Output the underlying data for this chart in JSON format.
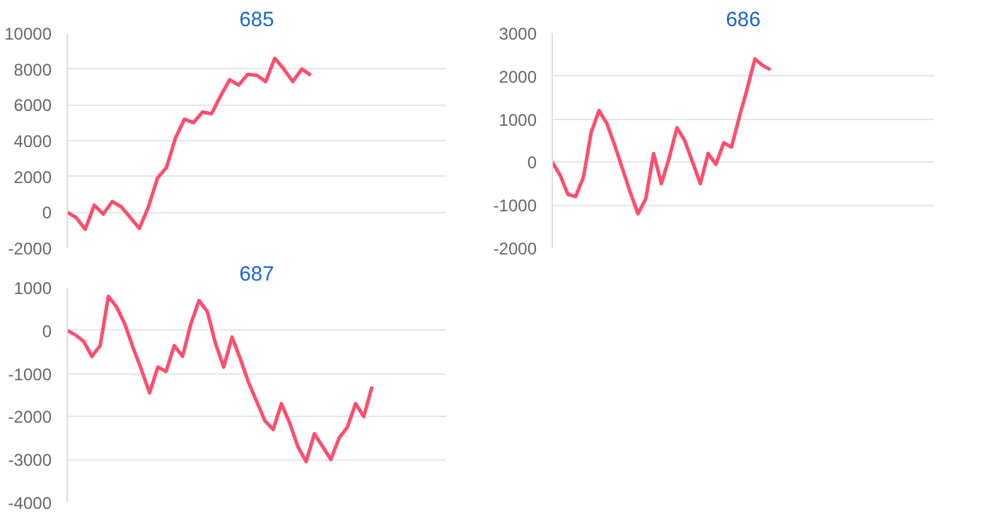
{
  "chart_data": [
    {
      "type": "line",
      "title": "685",
      "ylim": [
        -2000,
        10000
      ],
      "yticks": [
        -2000,
        0,
        2000,
        4000,
        6000,
        8000,
        10000
      ],
      "tick_labels": "y",
      "grid": "y",
      "categories": [
        null,
        null,
        null,
        null,
        null,
        null,
        null,
        null,
        null,
        null,
        null,
        null,
        null,
        null,
        null,
        null,
        null,
        null,
        null,
        null,
        null,
        null,
        null,
        null,
        null,
        null,
        null,
        null,
        null,
        null,
        null,
        null,
        null,
        null,
        null,
        null,
        null,
        null,
        null,
        null,
        null,
        null,
        null
      ],
      "series": [
        {
          "color": "#ff4d6d",
          "values": [
            0,
            -300,
            -950,
            400,
            -100,
            600,
            300,
            -300,
            -900,
            300,
            1900,
            2500,
            4150,
            5200,
            5000,
            5600,
            5500,
            6500,
            7400,
            7100,
            7700,
            7650,
            7300,
            8600,
            8000,
            7300,
            8000,
            7650,
            null,
            null,
            null,
            null,
            null,
            null,
            null,
            null,
            null,
            null,
            null,
            null,
            null,
            null,
            null
          ]
        }
      ]
    },
    {
      "type": "line",
      "title": "686",
      "ylim": [
        -2000,
        3000
      ],
      "yticks": [
        -2000,
        -1000,
        0,
        1000,
        2000,
        3000
      ],
      "tick_labels": "y",
      "grid": "y",
      "categories": [
        null,
        null,
        null,
        null,
        null,
        null,
        null,
        null,
        null,
        null,
        null,
        null,
        null,
        null,
        null,
        null,
        null,
        null,
        null,
        null,
        null,
        null,
        null,
        null,
        null,
        null,
        null,
        null,
        null,
        null,
        null,
        null,
        null,
        null,
        null,
        null,
        null,
        null,
        null,
        null,
        null,
        null,
        null,
        null,
        null,
        null,
        null,
        null,
        null,
        null
      ],
      "series": [
        {
          "color": "#ff4d6d",
          "values": [
            0,
            -300,
            -750,
            -800,
            -350,
            700,
            1200,
            900,
            400,
            -150,
            -700,
            -1200,
            -850,
            200,
            -500,
            100,
            800,
            500,
            0,
            -500,
            200,
            -50,
            450,
            350,
            1050,
            1700,
            2400,
            2250,
            2150,
            null,
            null,
            null,
            null,
            null,
            null,
            null,
            null,
            null,
            null,
            null,
            null,
            null,
            null,
            null,
            null,
            null,
            null,
            null,
            null,
            null
          ]
        }
      ]
    },
    {
      "type": "line",
      "title": "687",
      "ylim": [
        -4000,
        1000
      ],
      "yticks": [
        -4000,
        -3000,
        -2000,
        -1000,
        0,
        1000
      ],
      "tick_labels": "y",
      "grid": "y",
      "categories": [
        null,
        null,
        null,
        null,
        null,
        null,
        null,
        null,
        null,
        null,
        null,
        null,
        null,
        null,
        null,
        null,
        null,
        null,
        null,
        null,
        null,
        null,
        null,
        null,
        null,
        null,
        null,
        null,
        null,
        null,
        null,
        null,
        null,
        null,
        null,
        null,
        null,
        null,
        null,
        null,
        null,
        null,
        null,
        null,
        null,
        null,
        null
      ],
      "series": [
        {
          "color": "#ff4d6d",
          "values": [
            0,
            -100,
            -250,
            -600,
            -350,
            800,
            550,
            150,
            -400,
            -900,
            -1450,
            -850,
            -950,
            -350,
            -600,
            150,
            700,
            450,
            -300,
            -850,
            -150,
            -650,
            -1200,
            -1650,
            -2100,
            -2300,
            -1700,
            -2150,
            -2700,
            -3050,
            -2400,
            -2700,
            -3000,
            -2500,
            -2250,
            -1700,
            -2000,
            -1300,
            null,
            null,
            null,
            null,
            null,
            null,
            null,
            null,
            null
          ]
        }
      ]
    }
  ]
}
